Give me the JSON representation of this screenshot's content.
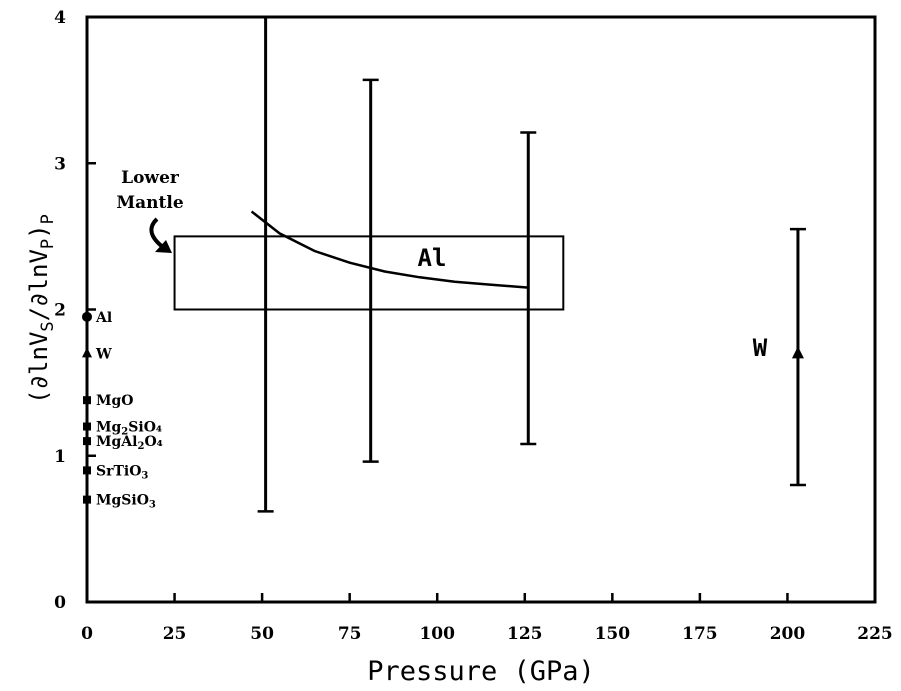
{
  "chart_data": {
    "type": "scatter",
    "xlabel": "Pressure (GPa)",
    "ylabel_parts": [
      "(∂lnV",
      "S",
      "/∂lnV",
      "P",
      ")",
      "P"
    ],
    "xlim": [
      0,
      225
    ],
    "ylim": [
      0,
      4
    ],
    "x_ticks": [
      "0",
      "25",
      "50",
      "75",
      "100",
      "125",
      "150",
      "175",
      "200",
      "225"
    ],
    "y_ticks": [
      "0",
      "1",
      "2",
      "3",
      "4"
    ],
    "lower_mantle": {
      "label_lines": [
        "Lower",
        "Mantle"
      ],
      "x_range": [
        25,
        136
      ],
      "y_range": [
        2.0,
        2.5
      ]
    },
    "al_curve": {
      "label": "Al",
      "x": [
        47,
        55,
        65,
        75,
        85,
        95,
        105,
        115,
        126
      ],
      "y": [
        2.67,
        2.52,
        2.4,
        2.32,
        2.26,
        2.22,
        2.19,
        2.17,
        2.15
      ]
    },
    "error_bars": [
      {
        "x": 51,
        "y_low": 0.62,
        "y_high": 4.0
      },
      {
        "x": 81,
        "y_low": 0.96,
        "y_high": 3.57
      },
      {
        "x": 126,
        "y_low": 1.08,
        "y_high": 3.21
      }
    ],
    "w_point": {
      "label": "W",
      "x": 203,
      "y": 1.7,
      "y_low": 0.8,
      "y_high": 2.55
    },
    "zero_pressure": [
      {
        "label": "Al",
        "label_sub": "",
        "label_end": "",
        "y": 1.95,
        "marker": "circle"
      },
      {
        "label": "W",
        "label_sub": "",
        "label_end": "",
        "y": 1.7,
        "marker": "triangle"
      },
      {
        "label": "MgO",
        "label_sub": "",
        "label_end": "",
        "y": 1.38,
        "marker": "square"
      },
      {
        "label": "Mg",
        "label_sub": "2",
        "label_end": "SiO₄",
        "y": 1.2,
        "marker": "square"
      },
      {
        "label": "MgAl",
        "label_sub": "2",
        "label_end": "O₄",
        "y": 1.1,
        "marker": "square"
      },
      {
        "label": "SrTiO",
        "label_sub": "3",
        "label_end": "",
        "y": 0.9,
        "marker": "square"
      },
      {
        "label": "MgSiO",
        "label_sub": "3",
        "label_end": "",
        "y": 0.7,
        "marker": "square"
      }
    ]
  }
}
